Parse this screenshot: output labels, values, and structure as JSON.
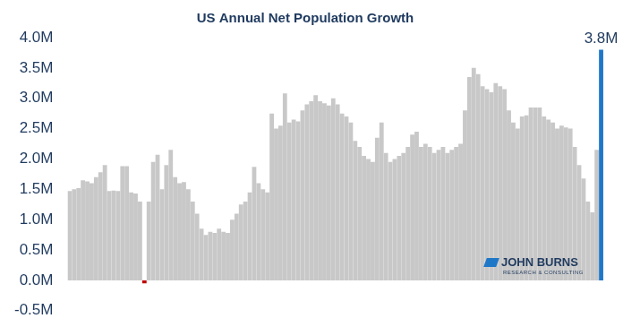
{
  "chart_data": {
    "type": "bar",
    "title": "US Annual Net Population Growth",
    "logo": {
      "name": "JOHN BURNS",
      "subtitle": "RESEARCH & CONSULTING"
    },
    "categories": [
      null,
      null,
      null,
      null,
      null,
      null,
      null,
      null,
      null,
      null,
      null,
      null,
      null,
      null,
      null,
      null,
      null,
      null,
      null,
      null,
      null,
      null,
      null,
      null,
      null,
      null,
      null,
      null,
      null,
      null,
      null,
      null,
      null,
      null,
      null,
      null,
      null,
      null,
      null,
      null,
      null,
      null,
      null,
      null,
      null,
      null,
      null,
      null,
      null,
      null,
      null,
      null,
      null,
      null,
      null,
      null,
      null,
      null,
      null,
      null,
      null,
      null,
      null,
      null,
      null,
      null,
      null,
      null,
      null,
      null,
      null,
      null,
      null,
      null,
      null,
      null,
      null,
      null,
      null,
      null,
      null,
      null,
      null,
      null,
      null,
      null,
      null,
      null,
      null,
      null,
      null,
      null,
      null,
      null,
      null,
      null,
      null,
      null,
      null,
      null,
      null,
      null,
      null,
      null,
      null,
      null,
      null,
      null,
      null,
      null,
      null,
      null,
      null,
      null,
      null,
      null,
      null,
      null,
      null,
      null,
      null,
      null
    ],
    "values": [
      1.47,
      1.5,
      1.52,
      1.65,
      1.63,
      1.6,
      1.7,
      1.78,
      1.9,
      1.47,
      1.48,
      1.47,
      1.88,
      1.88,
      1.45,
      1.43,
      1.3,
      -0.05,
      1.3,
      1.95,
      2.07,
      1.5,
      1.9,
      2.15,
      1.7,
      1.6,
      1.62,
      1.5,
      1.3,
      1.1,
      0.85,
      0.75,
      0.8,
      0.78,
      0.85,
      0.8,
      0.78,
      1.0,
      1.1,
      1.25,
      1.3,
      1.45,
      1.87,
      1.6,
      1.5,
      1.45,
      2.75,
      2.5,
      2.55,
      3.08,
      2.6,
      2.65,
      2.62,
      2.8,
      2.9,
      2.95,
      3.05,
      2.95,
      2.92,
      2.88,
      3.0,
      2.9,
      2.75,
      2.7,
      2.6,
      2.3,
      2.2,
      2.05,
      2.0,
      1.95,
      2.35,
      2.6,
      2.1,
      1.95,
      2.0,
      2.05,
      2.1,
      2.2,
      2.4,
      2.45,
      2.2,
      2.25,
      2.2,
      2.1,
      2.15,
      2.2,
      2.1,
      2.15,
      2.2,
      2.25,
      2.8,
      3.35,
      3.5,
      3.4,
      3.2,
      3.15,
      3.1,
      3.25,
      3.2,
      3.15,
      2.8,
      2.6,
      2.5,
      2.7,
      2.72,
      2.85,
      2.85,
      2.85,
      2.7,
      2.65,
      2.6,
      2.5,
      2.55,
      2.52,
      2.5,
      2.2,
      1.9,
      1.68,
      1.3,
      1.12,
      2.15,
      3.8
    ],
    "colors": [
      "#c8c8c8",
      "#c8c8c8",
      "#c8c8c8",
      "#c8c8c8",
      "#c8c8c8",
      "#c8c8c8",
      "#c8c8c8",
      "#c8c8c8",
      "#c8c8c8",
      "#c8c8c8",
      "#c8c8c8",
      "#c8c8c8",
      "#c8c8c8",
      "#c8c8c8",
      "#c8c8c8",
      "#c8c8c8",
      "#c8c8c8",
      "#c00000",
      "#c8c8c8",
      "#c8c8c8",
      "#c8c8c8",
      "#c8c8c8",
      "#c8c8c8",
      "#c8c8c8",
      "#c8c8c8",
      "#c8c8c8",
      "#c8c8c8",
      "#c8c8c8",
      "#c8c8c8",
      "#c8c8c8",
      "#c8c8c8",
      "#c8c8c8",
      "#c8c8c8",
      "#c8c8c8",
      "#c8c8c8",
      "#c8c8c8",
      "#c8c8c8",
      "#c8c8c8",
      "#c8c8c8",
      "#c8c8c8",
      "#c8c8c8",
      "#c8c8c8",
      "#c8c8c8",
      "#c8c8c8",
      "#c8c8c8",
      "#c8c8c8",
      "#c8c8c8",
      "#c8c8c8",
      "#c8c8c8",
      "#c8c8c8",
      "#c8c8c8",
      "#c8c8c8",
      "#c8c8c8",
      "#c8c8c8",
      "#c8c8c8",
      "#c8c8c8",
      "#c8c8c8",
      "#c8c8c8",
      "#c8c8c8",
      "#c8c8c8",
      "#c8c8c8",
      "#c8c8c8",
      "#c8c8c8",
      "#c8c8c8",
      "#c8c8c8",
      "#c8c8c8",
      "#c8c8c8",
      "#c8c8c8",
      "#c8c8c8",
      "#c8c8c8",
      "#c8c8c8",
      "#c8c8c8",
      "#c8c8c8",
      "#c8c8c8",
      "#c8c8c8",
      "#c8c8c8",
      "#c8c8c8",
      "#c8c8c8",
      "#c8c8c8",
      "#c8c8c8",
      "#c8c8c8",
      "#c8c8c8",
      "#c8c8c8",
      "#c8c8c8",
      "#c8c8c8",
      "#c8c8c8",
      "#c8c8c8",
      "#c8c8c8",
      "#c8c8c8",
      "#c8c8c8",
      "#c8c8c8",
      "#c8c8c8",
      "#c8c8c8",
      "#c8c8c8",
      "#c8c8c8",
      "#c8c8c8",
      "#c8c8c8",
      "#c8c8c8",
      "#c8c8c8",
      "#c8c8c8",
      "#c8c8c8",
      "#c8c8c8",
      "#c8c8c8",
      "#c8c8c8",
      "#c8c8c8",
      "#c8c8c8",
      "#c8c8c8",
      "#c8c8c8",
      "#c8c8c8",
      "#c8c8c8",
      "#c8c8c8",
      "#c8c8c8",
      "#c8c8c8",
      "#c8c8c8",
      "#c8c8c8",
      "#c8c8c8",
      "#c8c8c8",
      "#c8c8c8",
      "#c8c8c8",
      "#c8c8c8",
      "#c8c8c8",
      "#1f77c8"
    ],
    "data_labels": true,
    "value_labels": [
      null,
      null,
      null,
      null,
      null,
      null,
      null,
      null,
      null,
      null,
      null,
      null,
      null,
      null,
      null,
      null,
      null,
      null,
      null,
      null,
      null,
      null,
      null,
      null,
      null,
      null,
      null,
      null,
      null,
      null,
      null,
      null,
      null,
      null,
      null,
      null,
      null,
      null,
      null,
      null,
      null,
      null,
      null,
      null,
      null,
      null,
      null,
      null,
      null,
      null,
      null,
      null,
      null,
      null,
      null,
      null,
      null,
      null,
      null,
      null,
      null,
      null,
      null,
      null,
      null,
      null,
      null,
      null,
      null,
      null,
      null,
      null,
      null,
      null,
      null,
      null,
      null,
      null,
      null,
      null,
      null,
      null,
      null,
      null,
      null,
      null,
      null,
      null,
      null,
      null,
      null,
      null,
      null,
      null,
      null,
      null,
      null,
      null,
      null,
      null,
      null,
      null,
      null,
      null,
      null,
      null,
      null,
      null,
      null,
      null,
      null,
      null,
      null,
      null,
      null,
      null,
      null,
      null,
      null,
      null,
      null,
      "3.8M"
    ],
    "ylim": [
      -0.5,
      4.0
    ],
    "yticks": [
      {
        "value": -0.5,
        "label": "-0.5M"
      },
      {
        "value": 0,
        "label": "0.0M"
      },
      {
        "value": 0.5,
        "label": "0.5M"
      },
      {
        "value": 1.0,
        "label": "1.0M"
      },
      {
        "value": 1.5,
        "label": "1.5M"
      },
      {
        "value": 2.0,
        "label": "2.0M"
      },
      {
        "value": 2.5,
        "label": "2.5M"
      },
      {
        "value": 3.0,
        "label": "3.0M"
      },
      {
        "value": 3.5,
        "label": "3.5M"
      },
      {
        "value": 4.0,
        "label": "4.0M"
      }
    ],
    "grid": false,
    "tick_labels": "y"
  }
}
